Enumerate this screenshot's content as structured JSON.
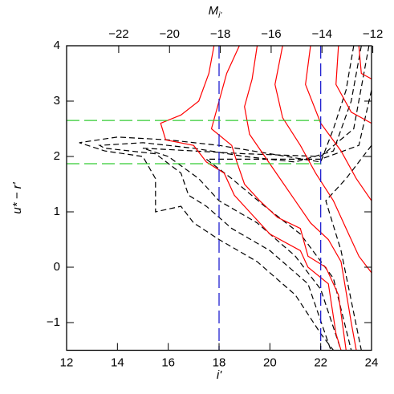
{
  "chart_data": {
    "type": "contour",
    "xlabel": "i'",
    "ylabel": "u* − r'",
    "x2label": "M",
    "x2label_sub": "i'",
    "xlim": [
      12,
      24
    ],
    "xticks": [
      12,
      14,
      16,
      18,
      20,
      22,
      24
    ],
    "ylim": [
      -1.5,
      4
    ],
    "yticks": [
      {
        "value": -1,
        "label": "−1"
      },
      0,
      1,
      2,
      3,
      4
    ],
    "x2lim": [
      -24.05,
      -12.05
    ],
    "x2ticks": [
      {
        "value": -22,
        "label": "−22"
      },
      {
        "value": -20,
        "label": "−20"
      },
      {
        "value": -18,
        "label": "−18"
      },
      {
        "value": -16,
        "label": "−16"
      },
      {
        "value": -14,
        "label": "−14"
      },
      {
        "value": -12,
        "label": "−12"
      }
    ],
    "vlines": [
      {
        "x": 18,
        "color": "#1f1fd0"
      },
      {
        "x": 22,
        "color": "#1f1fd0"
      }
    ],
    "hlines": [
      {
        "y": 2.65,
        "xrange": [
          12,
          22
        ],
        "color": "#33cc33"
      },
      {
        "y": 1.87,
        "xrange": [
          12,
          22
        ],
        "color": "#33cc33"
      }
    ],
    "series": [
      {
        "color": "#000000",
        "dash": true,
        "x": [
          23.3,
          23,
          22.5,
          22,
          20,
          18,
          16,
          14,
          12.5,
          13.5,
          15,
          15.5,
          15.5,
          16.5,
          17,
          18,
          19.5,
          21,
          22,
          22.5
        ],
        "y": [
          4,
          3.2,
          2.5,
          1.9,
          2.05,
          2.2,
          2.3,
          2.35,
          2.25,
          2.1,
          2.0,
          1.6,
          1.0,
          1.1,
          0.8,
          0.5,
          0.1,
          -0.5,
          -1.2,
          -1.5
        ]
      },
      {
        "color": "#000000",
        "dash": true,
        "x": [
          23.6,
          23.2,
          22.5,
          21,
          19,
          17,
          15,
          13.3,
          13.5,
          15.5,
          16.5,
          16.8,
          17.5,
          18.5,
          20,
          21.5,
          22.4
        ],
        "y": [
          4,
          3,
          2.1,
          1.9,
          2.0,
          2.15,
          2.25,
          2.2,
          2.15,
          2.05,
          1.7,
          1.3,
          1.1,
          0.7,
          0.3,
          -0.3,
          -1.5
        ]
      },
      {
        "color": "#000000",
        "dash": true,
        "x": [
          23.9,
          23.3,
          22,
          19,
          17,
          15,
          16,
          17.2,
          18,
          19.5,
          21,
          22,
          22.8
        ],
        "y": [
          4,
          2.5,
          2.0,
          2.05,
          2.1,
          2.15,
          2.0,
          1.6,
          1.2,
          0.8,
          0.2,
          -0.4,
          -1.5
        ]
      },
      {
        "color": "#000000",
        "dash": true,
        "x": [
          24,
          23.5,
          22,
          19,
          17.5,
          18.5,
          19.8,
          21.2,
          22.5,
          23.2
        ],
        "y": [
          3.2,
          2.2,
          1.95,
          1.95,
          1.95,
          1.6,
          1.1,
          0.6,
          -0.2,
          -1.5
        ]
      },
      {
        "color": "#000000",
        "dash": true,
        "x": [
          24,
          23,
          22.2,
          22.8,
          23.6
        ],
        "y": [
          2.2,
          1.6,
          1.2,
          0.3,
          -1.5
        ]
      },
      {
        "color": "#ff0000",
        "dash": false,
        "x": [
          17.8,
          17.6,
          17.2,
          16.5,
          15.7,
          15.9,
          17,
          17.5,
          18.2,
          18.6,
          19.2,
          20,
          21.2,
          21.5,
          22.3,
          22.6,
          22.8
        ],
        "y": [
          4,
          3.5,
          3.0,
          2.75,
          2.6,
          2.3,
          2.2,
          1.9,
          1.7,
          1.3,
          1.0,
          0.6,
          0.3,
          0,
          -0.3,
          -1.2,
          -1.5
        ]
      },
      {
        "color": "#ff0000",
        "dash": false,
        "x": [
          18.8,
          18.3,
          18,
          17.7,
          18.5,
          18.7,
          19,
          19.6,
          20.3,
          21.2,
          21.5,
          22.2,
          22.7,
          23
        ],
        "y": [
          4,
          3.5,
          3.0,
          2.5,
          2.2,
          1.9,
          1.5,
          1.2,
          0.9,
          0.7,
          0.2,
          0,
          -0.5,
          -1.5
        ]
      },
      {
        "color": "#ff0000",
        "dash": false,
        "x": [
          19.5,
          19.3,
          19,
          19.2,
          19.8,
          20.4,
          21,
          21.6,
          22.3,
          22.8,
          23.2,
          23.4
        ],
        "y": [
          4,
          3.4,
          2.9,
          2.4,
          2.0,
          1.6,
          1.2,
          0.8,
          0.5,
          0.1,
          -1,
          -1.5
        ]
      },
      {
        "color": "#ff0000",
        "dash": false,
        "x": [
          20.5,
          20.2,
          20.5,
          21.2,
          21.8,
          22.5,
          23,
          23.5,
          24
        ],
        "y": [
          4,
          3.3,
          2.7,
          2.2,
          1.7,
          1.2,
          0.7,
          0.2,
          -0.1
        ]
      },
      {
        "color": "#ff0000",
        "dash": false,
        "x": [
          21.6,
          21.4,
          22,
          22.8,
          23.4,
          24
        ],
        "y": [
          4,
          3.3,
          2.6,
          2.1,
          1.6,
          1.2
        ]
      },
      {
        "color": "#ff0000",
        "dash": false,
        "x": [
          22.7,
          22.6,
          23.2,
          24
        ],
        "y": [
          4,
          3.3,
          2.8,
          2.6
        ]
      },
      {
        "color": "#ff0000",
        "dash": false,
        "x": [
          23.5,
          23.6,
          24
        ],
        "y": [
          4,
          3.5,
          3.4
        ]
      }
    ]
  }
}
